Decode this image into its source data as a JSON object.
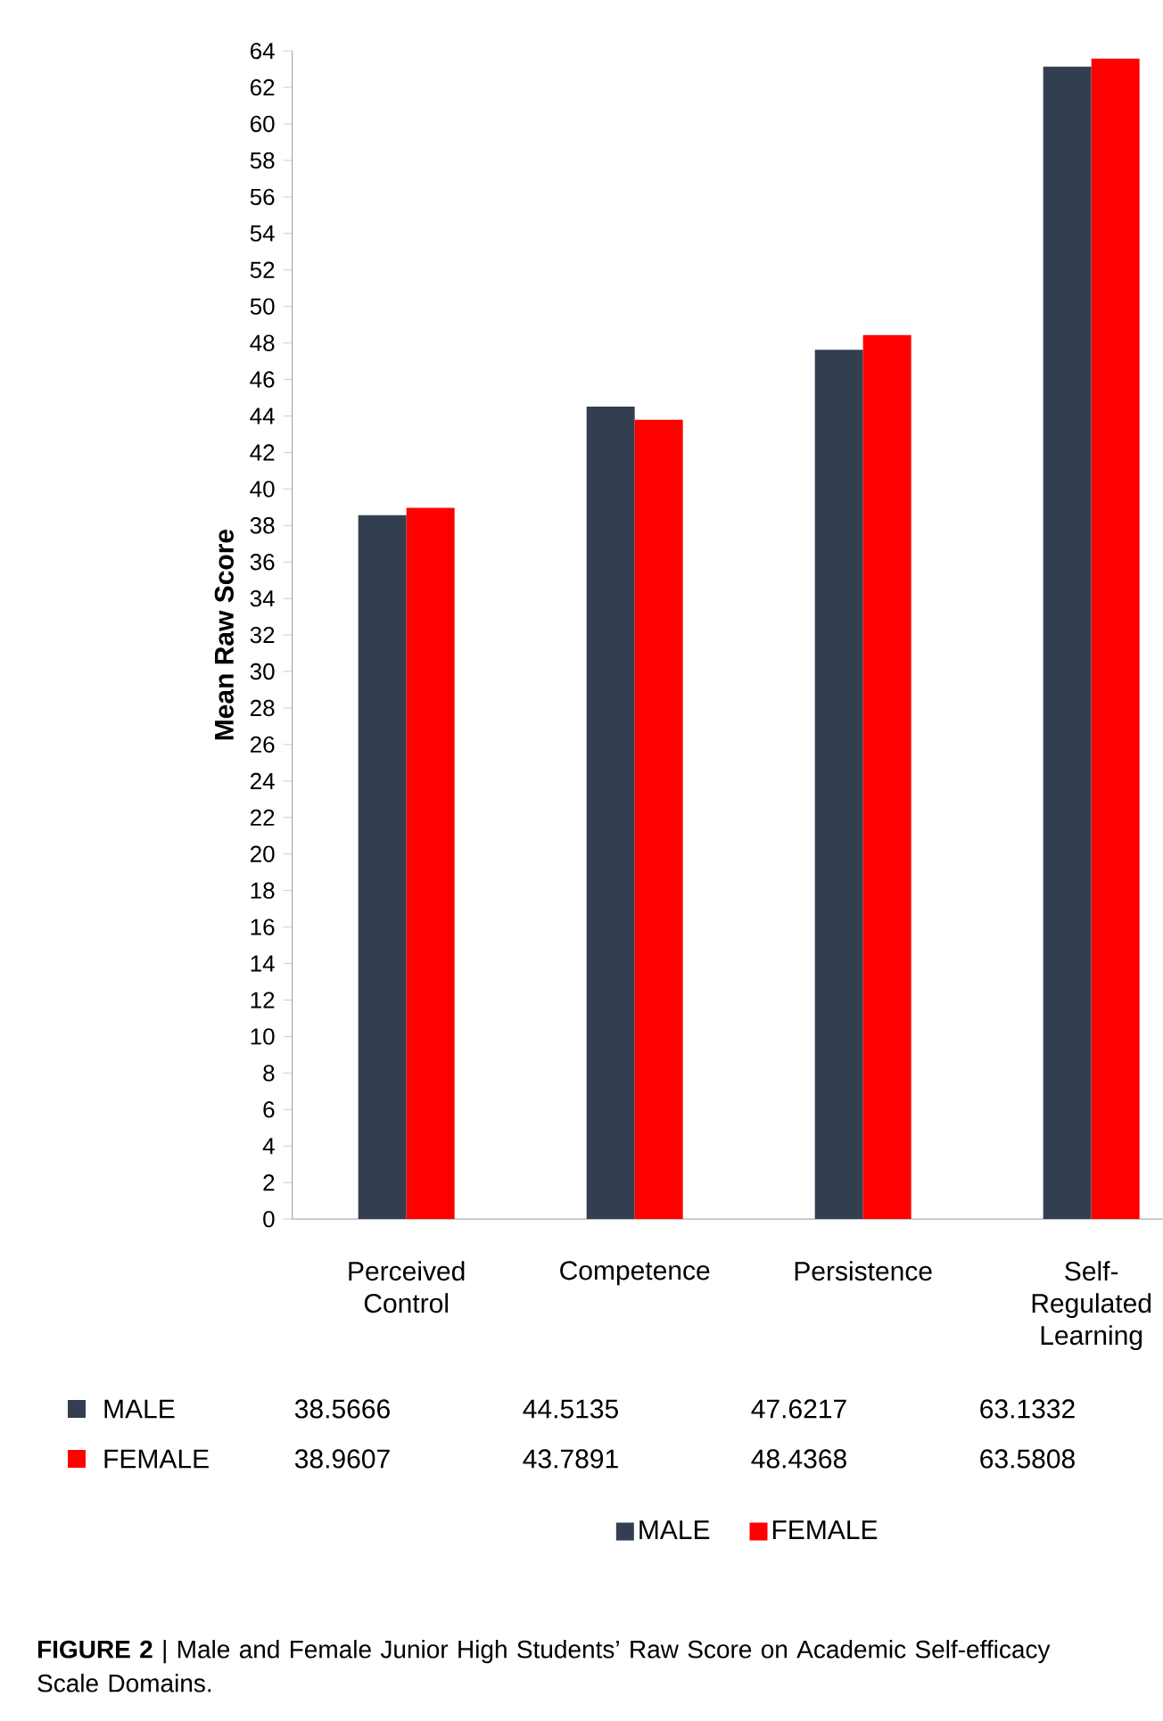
{
  "chart_data": {
    "type": "bar",
    "ylabel": "Mean Raw Score",
    "categories": [
      "Perceived Control",
      "Competence",
      "Persistence",
      "Self-Regulated Learning"
    ],
    "series": [
      {
        "name": "MALE",
        "color": "#333f50",
        "values": [
          38.5666,
          44.5135,
          47.6217,
          63.1332
        ]
      },
      {
        "name": "FEMALE",
        "color": "#ff0000",
        "values": [
          38.9607,
          43.7891,
          48.4368,
          63.5808
        ]
      }
    ],
    "ylim": [
      0,
      64
    ],
    "yticks": [
      0,
      2,
      4,
      6,
      8,
      10,
      12,
      14,
      16,
      18,
      20,
      22,
      24,
      26,
      28,
      30,
      32,
      34,
      36,
      38,
      40,
      42,
      44,
      46,
      48,
      50,
      52,
      54,
      56,
      58,
      60,
      62,
      64
    ],
    "data_labels": true,
    "legend": "bottom",
    "grid": false,
    "annotations": [
      "**FIGURE 2** | Male and Female Junior High Students’ Raw Score on Academic Self-efficacy Scale Domains."
    ]
  }
}
